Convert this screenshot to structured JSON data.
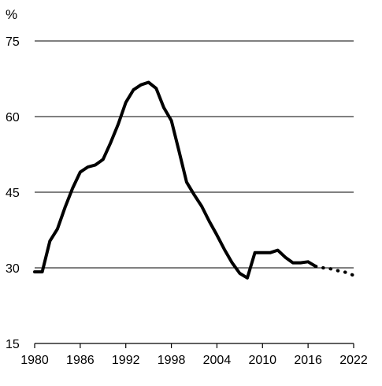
{
  "chart_data": {
    "type": "line",
    "title": "",
    "xlabel": "",
    "ylabel": "%",
    "xlim": [
      1980,
      2022
    ],
    "ylim": [
      15,
      75
    ],
    "yticks": [
      15,
      30,
      45,
      60,
      75
    ],
    "xticks": [
      1980,
      1986,
      1992,
      1998,
      2004,
      2010,
      2016,
      2022
    ],
    "grid": "horizontal",
    "legend": "none",
    "colors": {
      "line": "#000000",
      "grid": "#000000",
      "background": "#ffffff"
    },
    "series": [
      {
        "style": "solid",
        "points": [
          [
            1980,
            29.2
          ],
          [
            1981,
            29.2
          ],
          [
            1982,
            35.3
          ],
          [
            1983,
            37.7
          ],
          [
            1984,
            42.0
          ],
          [
            1985,
            45.8
          ],
          [
            1986,
            49.0
          ],
          [
            1987,
            50.0
          ],
          [
            1988,
            50.4
          ],
          [
            1989,
            51.5
          ],
          [
            1990,
            54.8
          ],
          [
            1991,
            58.5
          ],
          [
            1992,
            62.8
          ],
          [
            1993,
            65.3
          ],
          [
            1994,
            66.3
          ],
          [
            1995,
            66.8
          ],
          [
            1996,
            65.6
          ],
          [
            1997,
            61.8
          ],
          [
            1998,
            59.2
          ],
          [
            1999,
            53.2
          ],
          [
            2000,
            47.0
          ],
          [
            2001,
            44.5
          ],
          [
            2002,
            42.2
          ],
          [
            2003,
            39.2
          ],
          [
            2004,
            36.5
          ],
          [
            2005,
            33.6
          ],
          [
            2006,
            31.0
          ],
          [
            2007,
            28.9
          ],
          [
            2008,
            28.0
          ],
          [
            2009,
            33.0
          ],
          [
            2010,
            33.0
          ],
          [
            2011,
            33.0
          ],
          [
            2012,
            33.5
          ],
          [
            2013,
            32.1
          ],
          [
            2014,
            31.0
          ],
          [
            2015,
            31.0
          ],
          [
            2016,
            31.2
          ],
          [
            2017,
            30.3
          ]
        ]
      },
      {
        "style": "dotted",
        "points": [
          [
            2017,
            30.3
          ],
          [
            2018,
            30.0
          ],
          [
            2019,
            29.8
          ],
          [
            2020,
            29.4
          ],
          [
            2021,
            29.1
          ],
          [
            2022,
            28.5
          ]
        ]
      }
    ]
  }
}
